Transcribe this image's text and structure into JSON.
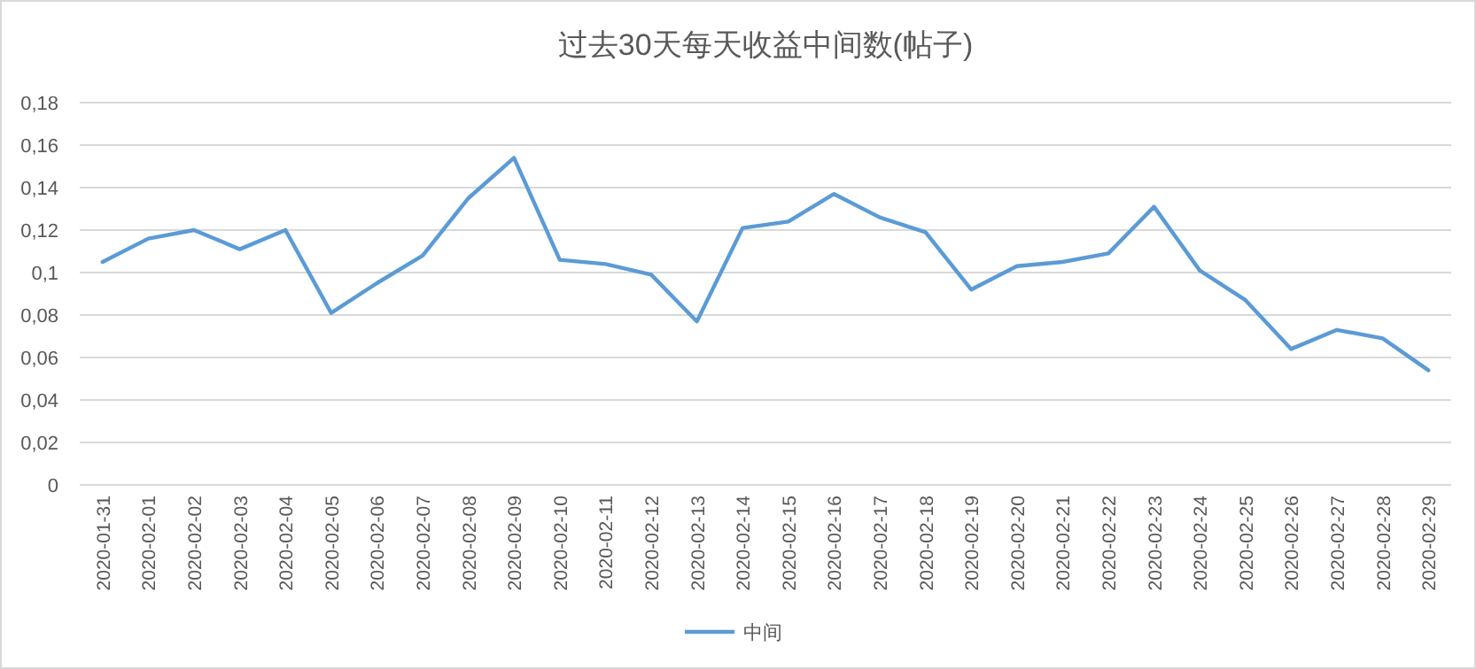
{
  "chart_data": {
    "type": "line",
    "title": "过去30天每天收益中间数(帖子)",
    "categories": [
      "2020-01-31",
      "2020-02-01",
      "2020-02-02",
      "2020-02-03",
      "2020-02-04",
      "2020-02-05",
      "2020-02-06",
      "2020-02-07",
      "2020-02-08",
      "2020-02-09",
      "2020-02-10",
      "2020-02-11",
      "2020-02-12",
      "2020-02-13",
      "2020-02-14",
      "2020-02-15",
      "2020-02-16",
      "2020-02-17",
      "2020-02-18",
      "2020-02-19",
      "2020-02-20",
      "2020-02-21",
      "2020-02-22",
      "2020-02-23",
      "2020-02-24",
      "2020-02-25",
      "2020-02-26",
      "2020-02-27",
      "2020-02-28",
      "2020-02-29"
    ],
    "series": [
      {
        "name": "中间",
        "color": "#5b9bd5",
        "values": [
          0.105,
          0.116,
          0.12,
          0.111,
          0.12,
          0.081,
          0.095,
          0.108,
          0.135,
          0.154,
          0.106,
          0.104,
          0.099,
          0.077,
          0.121,
          0.124,
          0.137,
          0.126,
          0.119,
          0.092,
          0.103,
          0.105,
          0.109,
          0.131,
          0.101,
          0.087,
          0.064,
          0.073,
          0.069,
          0.054
        ]
      }
    ],
    "ylim": [
      0,
      0.18
    ],
    "yticks": [
      0,
      {
        "value": 0.02,
        "label": "0,02"
      },
      {
        "value": 0.04,
        "label": "0,04"
      },
      {
        "value": 0.06,
        "label": "0,06"
      },
      {
        "value": 0.08,
        "label": "0,08"
      },
      {
        "value": 0.1,
        "label": "0,1"
      },
      {
        "value": 0.12,
        "label": "0,12"
      },
      {
        "value": 0.14,
        "label": "0,14"
      },
      {
        "value": 0.16,
        "label": "0,16"
      },
      {
        "value": 0.18,
        "label": "0,18"
      }
    ],
    "grid": "y",
    "legend": "bottom",
    "marker": "none",
    "line_style": "solid"
  }
}
